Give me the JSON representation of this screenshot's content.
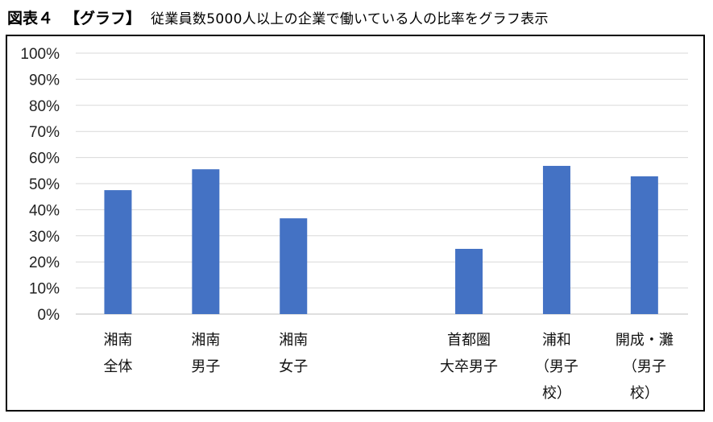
{
  "header": {
    "figure_label": "図表４",
    "figure_type": "【グラフ】",
    "caption": "従業員数5000人以上の企業で働いている人の比率をグラフ表示"
  },
  "chart_data": {
    "type": "bar",
    "categories": [
      [
        "湘南",
        "全体"
      ],
      [
        "湘南",
        "男子"
      ],
      [
        "湘南",
        "女子"
      ],
      [],
      [
        "首都圏",
        "大卒男子"
      ],
      [
        "浦和",
        "（男子",
        "校）"
      ],
      [
        "開成・灘",
        "（男子",
        "校）"
      ]
    ],
    "values": [
      47.5,
      55.5,
      36.7,
      null,
      25.0,
      56.8,
      52.8
    ],
    "ylim": [
      0,
      100
    ],
    "yticks": [
      "0%",
      "10%",
      "20%",
      "30%",
      "40%",
      "50%",
      "60%",
      "70%",
      "80%",
      "90%",
      "100%"
    ],
    "bar_color": "#4472C4",
    "grid": true,
    "legend": "none"
  }
}
